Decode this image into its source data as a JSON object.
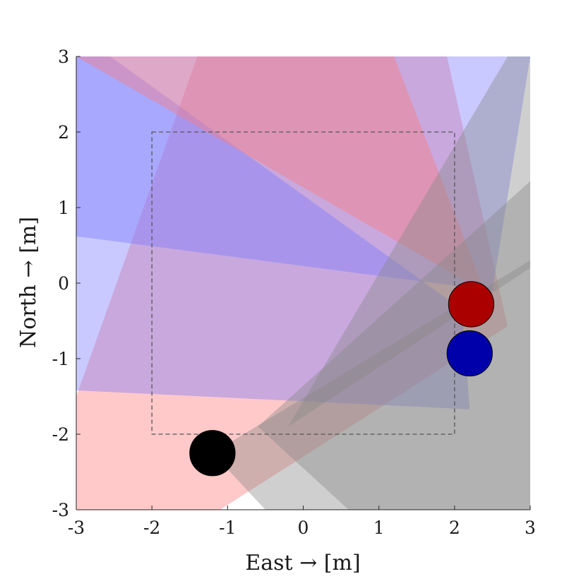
{
  "chart_data": {
    "type": "scatter",
    "xlabel": "East → [m]",
    "ylabel": "North → [m]",
    "xlim": [
      -3,
      3
    ],
    "ylim": [
      -3,
      3
    ],
    "xticks": [
      "-3",
      "-2",
      "-1",
      "0",
      "1",
      "2",
      "3"
    ],
    "yticks": [
      "-3",
      "-2",
      "-1",
      "0",
      "1",
      "2",
      "3"
    ],
    "grid": false,
    "boundary": {
      "x": [
        -2,
        2
      ],
      "y": [
        -2,
        2
      ],
      "style": "dashed",
      "color": "#555555"
    },
    "agents": [
      {
        "x": 2.22,
        "y": -0.28,
        "radius": 0.3,
        "color": "#aa0000"
      },
      {
        "x": 2.2,
        "y": -0.93,
        "radius": 0.3,
        "color": "#0000aa"
      },
      {
        "x": -1.2,
        "y": -2.25,
        "radius": 0.3,
        "color": "#000000"
      }
    ],
    "cones": [
      {
        "color": "#ff7777",
        "opacity": 0.4,
        "points": [
          [
            2.7,
            -0.57
          ],
          [
            1.9,
            3.0
          ],
          [
            -1.4,
            3.0
          ],
          [
            -3.0,
            -1.5
          ],
          [
            -3.0,
            -3.0
          ],
          [
            -1.1,
            -3.0
          ]
        ]
      },
      {
        "color": "#7777ff",
        "opacity": 0.4,
        "points": [
          [
            2.2,
            -1.67
          ],
          [
            -3.0,
            -1.42
          ],
          [
            -3.0,
            3.0
          ],
          [
            -2.55,
            3.0
          ],
          [
            2.1,
            -0.35
          ]
        ]
      },
      {
        "color": "#7777ff",
        "opacity": 0.4,
        "points": [
          [
            2.5,
            -0.1
          ],
          [
            3.0,
            3.0
          ],
          [
            -3.0,
            3.0
          ],
          [
            -3.0,
            0.62
          ]
        ]
      },
      {
        "color": "#ff7777",
        "opacity": 0.4,
        "points": [
          [
            2.4,
            -0.12
          ],
          [
            1.2,
            3.0
          ],
          [
            -2.6,
            3.0
          ],
          [
            -3.0,
            3.0
          ]
        ]
      },
      {
        "color": "#888888",
        "opacity": 0.4,
        "points": [
          [
            -1.2,
            -2.25
          ],
          [
            3.0,
            0.3
          ],
          [
            3.0,
            -3.0
          ],
          [
            -0.5,
            -3.0
          ]
        ]
      },
      {
        "color": "#888888",
        "opacity": 0.4,
        "points": [
          [
            -0.6,
            -1.9
          ],
          [
            3.0,
            1.35
          ],
          [
            3.0,
            -3.0
          ],
          [
            0.6,
            -3.0
          ]
        ]
      },
      {
        "color": "#888888",
        "opacity": 0.4,
        "points": [
          [
            -0.2,
            -1.9
          ],
          [
            2.7,
            3.0
          ],
          [
            3.0,
            3.0
          ],
          [
            3.0,
            0.2
          ]
        ]
      }
    ]
  }
}
